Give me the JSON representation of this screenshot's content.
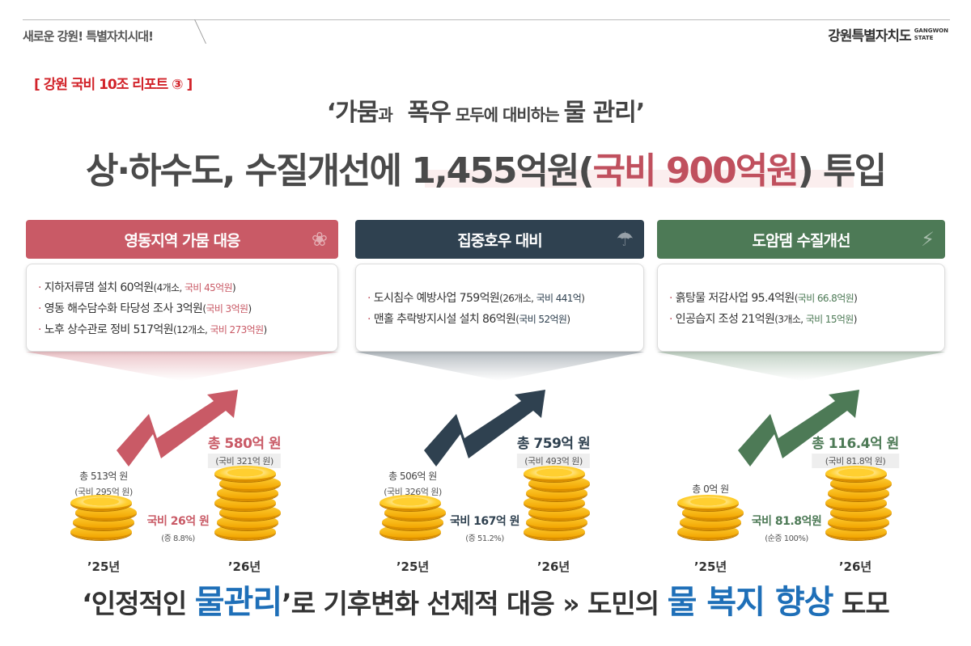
{
  "header": {
    "tagline": "새로운 강원! 특별자치시대!",
    "logo_text": "강원특별자치도",
    "logo_en_1": "GANGWON",
    "logo_en_2": "STATE"
  },
  "report_label": "[ 강원 국비 10조 리포트 ③ ]",
  "subtitle": {
    "q1": "‘",
    "w1": "가뭄",
    "p1": "과",
    "w2": "폭우",
    "p2": " 모두에 대비하는 ",
    "w3": "물 관리",
    "q2": "’"
  },
  "title": {
    "main": "상·하수도, 수질개선에 1,455억원(",
    "highlight": "국비 900억원",
    "end": ") 투입"
  },
  "colors": {
    "red": "#c95a66",
    "navy": "#2f4150",
    "green": "#4d7a56",
    "blue": "#1e6fb8"
  },
  "panels": [
    {
      "title": "영동지역 가뭄 대응",
      "icon": "drought-tree-icon",
      "color": "#c95a66",
      "items": [
        {
          "text": "지하저류댐 설치 60억원",
          "paren_a": "(4개소, ",
          "paren_b": "국비 45억원",
          "paren_c": ")"
        },
        {
          "text": "영동 해수담수화 타당성 조사 3억원",
          "paren_a": "(",
          "paren_b": "국비 3억원",
          "paren_c": ")"
        },
        {
          "text": "노후 상수관로 정비 517억원",
          "paren_a": "(12개소, ",
          "paren_b": "국비 273억원",
          "paren_c": ")"
        }
      ],
      "y25_total": "총 513억 원",
      "y25_gov": "(국비 295억 원)",
      "increase": "국비 26억 원",
      "increase_rate": "(증 8.8%)",
      "y26_total": "총 580억 원",
      "y26_gov": "(국비 321억 원)",
      "year25": "’25년",
      "year26": "’26년"
    },
    {
      "title": "집중호우 대비",
      "icon": "rain-cloud-icon",
      "color": "#2f4150",
      "items": [
        {
          "text": "도시침수 예방사업 759억원",
          "paren_a": "(26개소, ",
          "paren_b": "국비 441억",
          "paren_c": ")"
        },
        {
          "text": "맨홀 추락방지시설 설치 86억원",
          "paren_a": "(",
          "paren_b": "국비 52억원",
          "paren_c": ")"
        }
      ],
      "y25_total": "총 506억 원",
      "y25_gov": "(국비 326억 원)",
      "increase": "국비 167억 원",
      "increase_rate": "(증 51.2%)",
      "y26_total": "총 759억 원",
      "y26_gov": "(국비 493억 원)",
      "year25": "’25년",
      "year26": "’26년"
    },
    {
      "title": "도암댐 수질개선",
      "icon": "dam-icon",
      "color": "#4d7a56",
      "items": [
        {
          "text": "흙탕물 저감사업 95.4억원",
          "paren_a": "(",
          "paren_b": "국비 66.8억원",
          "paren_c": ")"
        },
        {
          "text": "인공습지 조성 21억원",
          "paren_a": "(3개소, ",
          "paren_b": "국비 15억원",
          "paren_c": ")"
        }
      ],
      "y25_total": "총 0억 원",
      "y25_gov": "",
      "increase": "국비 81.8억원",
      "increase_rate": "(순증 100%)",
      "y26_total": "총 116.4억 원",
      "y26_gov": "(국비 81.8억 원)",
      "year25": "’25년",
      "year26": "’26년"
    }
  ],
  "slogan": {
    "a": "‘인정적인 ",
    "b": "물관리",
    "c": "’로 기후변화 선제적 대응  »  도민의 ",
    "d": "물 복지 향상",
    "e": " 도모"
  }
}
